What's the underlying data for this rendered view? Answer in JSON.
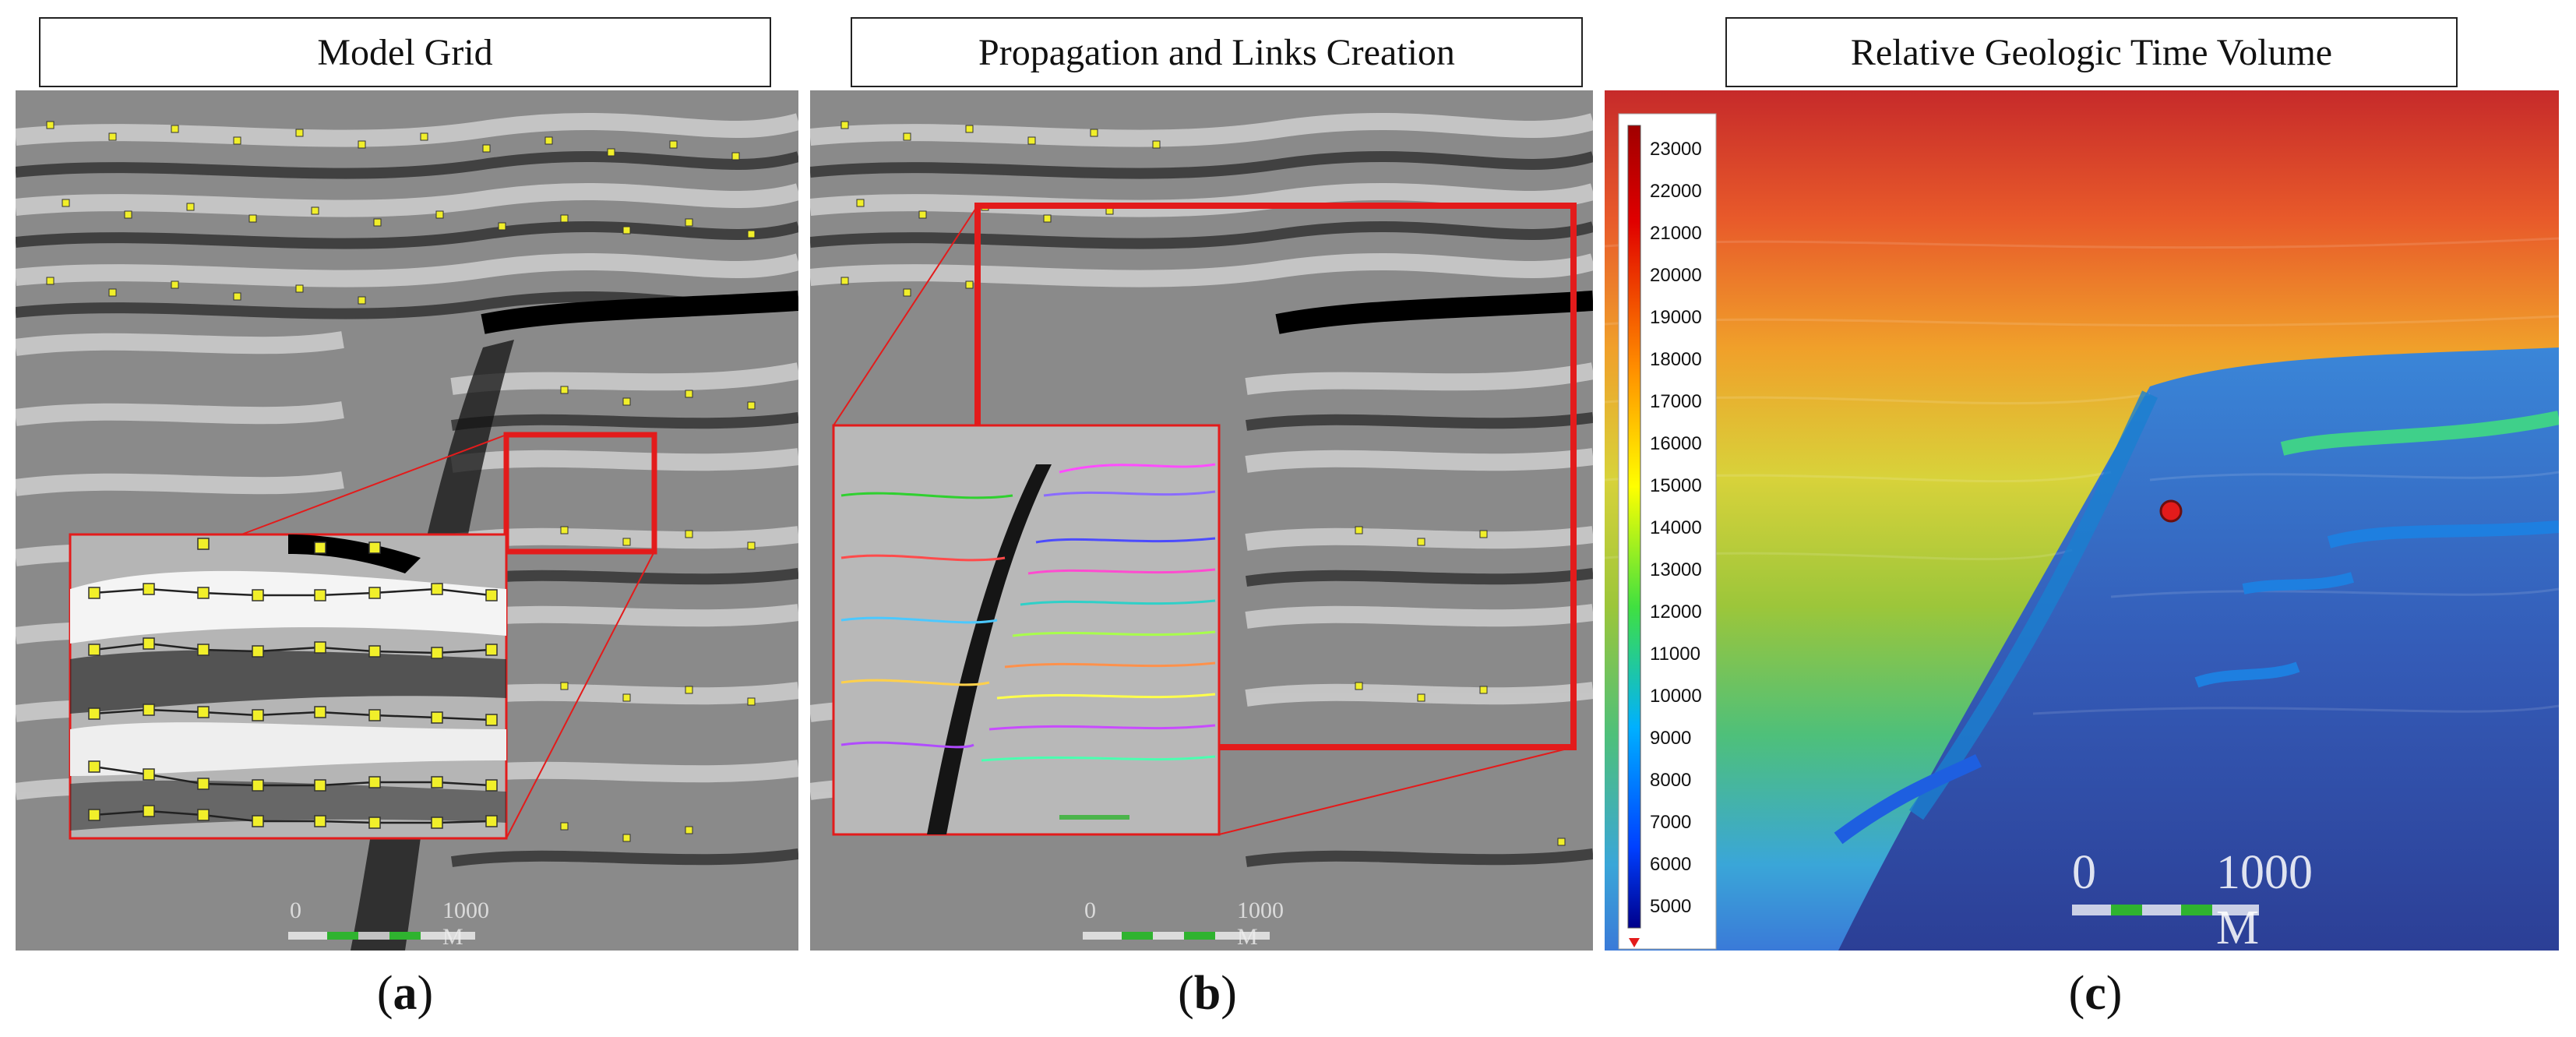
{
  "panels": [
    {
      "title": "Model Grid",
      "label": "a",
      "scale_zero": "0",
      "scale_text": "1000 M"
    },
    {
      "title": "Propagation and Links Creation",
      "label": "b",
      "scale_zero": "0",
      "scale_text": "1000 M"
    },
    {
      "title": "Relative Geologic Time Volume",
      "label": "c",
      "scale_zero": "0",
      "scale_text": "1000 M"
    }
  ],
  "colorbar": {
    "labels": [
      "23000",
      "22000",
      "21000",
      "20000",
      "19000",
      "18000",
      "17000",
      "16000",
      "15000",
      "14000",
      "13000",
      "12000",
      "11000",
      "10000",
      "9000",
      "8000",
      "7000",
      "6000",
      "5000"
    ]
  },
  "colors": {
    "highlight": "#e31b1b",
    "grid_node": "#f1ef2a",
    "grid_line": "#2e2e16"
  }
}
